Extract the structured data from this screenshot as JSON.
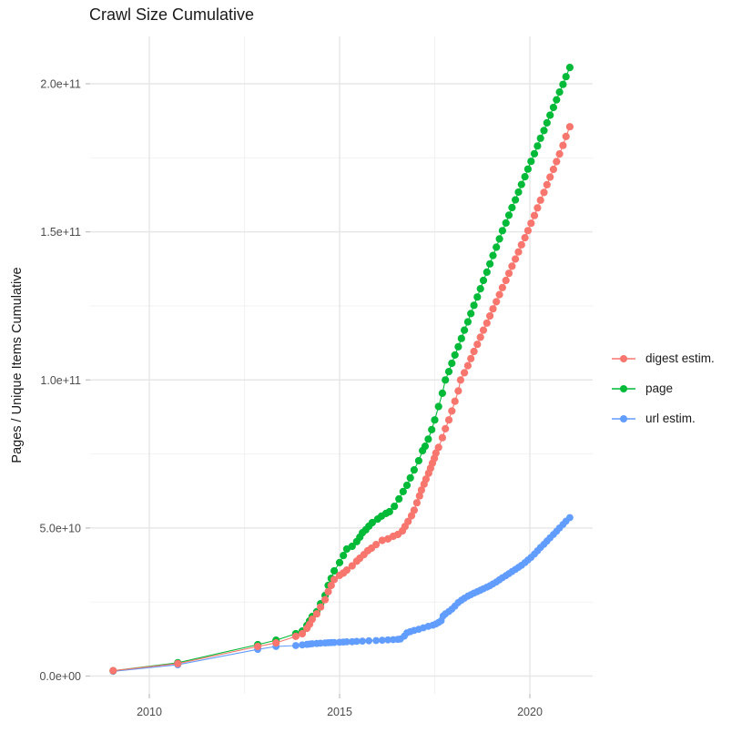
{
  "title": "Crawl Size Cumulative",
  "axes": {
    "y_title": "Pages / Unique Items Cumulative",
    "y_ticks": [
      {
        "label": "0.0e+00",
        "value": 0
      },
      {
        "label": "5.0e+10",
        "value": 50
      },
      {
        "label": "1.0e+11",
        "value": 100
      },
      {
        "label": "1.5e+11",
        "value": 150
      },
      {
        "label": "2.0e+11",
        "value": 200
      }
    ],
    "y_minor_values": [
      25,
      75,
      125,
      175
    ],
    "x_ticks": [
      {
        "label": "2010",
        "value": 2010
      },
      {
        "label": "2015",
        "value": 2015
      },
      {
        "label": "2020",
        "value": 2020
      }
    ],
    "x_minor_values": [
      2012.5,
      2017.5
    ]
  },
  "colors": {
    "digest": "#F8766D",
    "page": "#00BA38",
    "url": "#619CFF",
    "grid_major": "#E7E7E7",
    "grid_minor": "#F2F2F2",
    "tick_mark": "#BFBFBF",
    "tick_text": "#4D4D4D",
    "title_text": "#1A1A1A"
  },
  "chart_data": {
    "type": "scatter",
    "title": "Crawl Size Cumulative",
    "xlabel": "",
    "ylabel": "Pages / Unique Items Cumulative",
    "value_unit": "billions of pages / unique items (1 = 1e9); axis labels shown in e-notation",
    "x_range": [
      2008.4,
      2021.7
    ],
    "y_range_billions": [
      -9,
      216
    ],
    "grid": true,
    "legend_position": "right",
    "point_style": "filled circles connected by thin lines",
    "series": [
      {
        "name": "digest estim.",
        "color": "#F8766D",
        "point_radius": 4.1,
        "points": [
          [
            2009.05,
            1.8
          ],
          [
            2010.75,
            4.2
          ],
          [
            2012.85,
            10.0
          ],
          [
            2013.33,
            11.2
          ],
          [
            2013.85,
            13.4
          ],
          [
            2014.02,
            14.3
          ],
          [
            2014.14,
            16.1
          ],
          [
            2014.21,
            17.5
          ],
          [
            2014.28,
            19.2
          ],
          [
            2014.4,
            21.0
          ],
          [
            2014.5,
            23.3
          ],
          [
            2014.62,
            25.8
          ],
          [
            2014.7,
            28.5
          ],
          [
            2014.78,
            30.6
          ],
          [
            2014.86,
            32.6
          ],
          [
            2015.0,
            34.0
          ],
          [
            2015.1,
            34.8
          ],
          [
            2015.19,
            35.8
          ],
          [
            2015.33,
            37.2
          ],
          [
            2015.45,
            38.8
          ],
          [
            2015.53,
            39.8
          ],
          [
            2015.64,
            41.0
          ],
          [
            2015.74,
            42.3
          ],
          [
            2015.84,
            43.2
          ],
          [
            2015.96,
            44.4
          ],
          [
            2016.12,
            45.8
          ],
          [
            2016.27,
            46.3
          ],
          [
            2016.41,
            47.2
          ],
          [
            2016.53,
            47.8
          ],
          [
            2016.65,
            49.0
          ],
          [
            2016.72,
            50.5
          ],
          [
            2016.8,
            52.2
          ],
          [
            2016.89,
            54.1
          ],
          [
            2016.96,
            56.0
          ],
          [
            2017.03,
            58.5
          ],
          [
            2017.1,
            60.8
          ],
          [
            2017.15,
            62.8
          ],
          [
            2017.22,
            64.8
          ],
          [
            2017.27,
            66.5
          ],
          [
            2017.34,
            68.5
          ],
          [
            2017.39,
            70.2
          ],
          [
            2017.44,
            71.9
          ],
          [
            2017.49,
            73.5
          ],
          [
            2017.53,
            75.3
          ],
          [
            2017.6,
            77.2
          ],
          [
            2017.7,
            80.5
          ],
          [
            2017.78,
            83.5
          ],
          [
            2017.87,
            86.5
          ],
          [
            2017.95,
            89.5
          ],
          [
            2018.03,
            92.8
          ],
          [
            2018.12,
            96.3
          ],
          [
            2018.18,
            100.0
          ],
          [
            2018.28,
            102.4
          ],
          [
            2018.37,
            104.8
          ],
          [
            2018.45,
            107.2
          ],
          [
            2018.53,
            109.6
          ],
          [
            2018.62,
            112.0
          ],
          [
            2018.7,
            114.4
          ],
          [
            2018.78,
            116.8
          ],
          [
            2018.87,
            119.2
          ],
          [
            2018.95,
            121.6
          ],
          [
            2019.03,
            124.0
          ],
          [
            2019.12,
            126.4
          ],
          [
            2019.2,
            128.8
          ],
          [
            2019.28,
            131.2
          ],
          [
            2019.37,
            133.6
          ],
          [
            2019.45,
            136.0
          ],
          [
            2019.53,
            138.4
          ],
          [
            2019.62,
            140.8
          ],
          [
            2019.7,
            143.2
          ],
          [
            2019.78,
            145.6
          ],
          [
            2019.87,
            148.0
          ],
          [
            2019.95,
            150.4
          ],
          [
            2020.03,
            152.9
          ],
          [
            2020.12,
            155.5
          ],
          [
            2020.2,
            158.1
          ],
          [
            2020.28,
            160.7
          ],
          [
            2020.37,
            163.3
          ],
          [
            2020.45,
            165.9
          ],
          [
            2020.53,
            168.5
          ],
          [
            2020.62,
            171.1
          ],
          [
            2020.7,
            173.7
          ],
          [
            2020.78,
            176.3
          ],
          [
            2020.87,
            179.2
          ],
          [
            2020.95,
            182.2
          ],
          [
            2021.05,
            185.5
          ]
        ]
      },
      {
        "name": "page",
        "color": "#00BA38",
        "point_radius": 4.1,
        "points": [
          [
            2009.05,
            1.8
          ],
          [
            2010.75,
            4.5
          ],
          [
            2012.85,
            10.6
          ],
          [
            2013.33,
            12.1
          ],
          [
            2013.85,
            14.3
          ],
          [
            2014.02,
            15.2
          ],
          [
            2014.14,
            17.1
          ],
          [
            2014.21,
            18.6
          ],
          [
            2014.28,
            20.1
          ],
          [
            2014.4,
            21.7
          ],
          [
            2014.5,
            24.4
          ],
          [
            2014.62,
            27.2
          ],
          [
            2014.7,
            30.6
          ],
          [
            2014.78,
            33.0
          ],
          [
            2014.86,
            35.5
          ],
          [
            2015.0,
            38.3
          ],
          [
            2015.1,
            40.7
          ],
          [
            2015.19,
            42.9
          ],
          [
            2015.33,
            43.8
          ],
          [
            2015.45,
            45.4
          ],
          [
            2015.53,
            46.9
          ],
          [
            2015.6,
            48.4
          ],
          [
            2015.69,
            49.4
          ],
          [
            2015.77,
            50.6
          ],
          [
            2015.86,
            51.8
          ],
          [
            2016.0,
            53.0
          ],
          [
            2016.1,
            54.0
          ],
          [
            2016.22,
            54.9
          ],
          [
            2016.31,
            55.5
          ],
          [
            2016.44,
            57.3
          ],
          [
            2016.56,
            59.8
          ],
          [
            2016.67,
            62.3
          ],
          [
            2016.77,
            64.4
          ],
          [
            2016.86,
            66.9
          ],
          [
            2016.96,
            69.6
          ],
          [
            2017.08,
            72.7
          ],
          [
            2017.18,
            76.1
          ],
          [
            2017.25,
            77.6
          ],
          [
            2017.33,
            80.0
          ],
          [
            2017.42,
            83.2
          ],
          [
            2017.5,
            86.5
          ],
          [
            2017.6,
            91.0
          ],
          [
            2017.7,
            95.5
          ],
          [
            2017.78,
            100.0
          ],
          [
            2017.87,
            102.8
          ],
          [
            2017.95,
            105.6
          ],
          [
            2018.03,
            108.4
          ],
          [
            2018.12,
            111.2
          ],
          [
            2018.2,
            114.0
          ],
          [
            2018.28,
            116.8
          ],
          [
            2018.37,
            119.6
          ],
          [
            2018.45,
            122.4
          ],
          [
            2018.53,
            125.2
          ],
          [
            2018.62,
            128.0
          ],
          [
            2018.7,
            130.8
          ],
          [
            2018.78,
            133.6
          ],
          [
            2018.87,
            136.4
          ],
          [
            2018.95,
            139.2
          ],
          [
            2019.03,
            142.0
          ],
          [
            2019.12,
            144.8
          ],
          [
            2019.2,
            147.6
          ],
          [
            2019.28,
            150.4
          ],
          [
            2019.37,
            153.0
          ],
          [
            2019.45,
            155.6
          ],
          [
            2019.53,
            158.2
          ],
          [
            2019.62,
            160.8
          ],
          [
            2019.7,
            163.4
          ],
          [
            2019.78,
            166.0
          ],
          [
            2019.87,
            168.6
          ],
          [
            2019.95,
            171.2
          ],
          [
            2020.03,
            173.8
          ],
          [
            2020.12,
            176.4
          ],
          [
            2020.2,
            179.0
          ],
          [
            2020.28,
            181.6
          ],
          [
            2020.37,
            184.2
          ],
          [
            2020.45,
            186.8
          ],
          [
            2020.53,
            189.4
          ],
          [
            2020.62,
            192.0
          ],
          [
            2020.7,
            194.6
          ],
          [
            2020.78,
            197.2
          ],
          [
            2020.87,
            199.8
          ],
          [
            2020.95,
            202.4
          ],
          [
            2021.05,
            205.5
          ]
        ]
      },
      {
        "name": "url estim.",
        "color": "#619CFF",
        "point_radius": 3.9,
        "points": [
          [
            2009.05,
            1.6
          ],
          [
            2010.75,
            3.8
          ],
          [
            2012.85,
            9.0
          ],
          [
            2013.33,
            10.0
          ],
          [
            2013.85,
            10.3
          ],
          [
            2014.02,
            10.5
          ],
          [
            2014.14,
            10.7
          ],
          [
            2014.21,
            10.8
          ],
          [
            2014.28,
            10.9
          ],
          [
            2014.4,
            11.0
          ],
          [
            2014.5,
            11.1
          ],
          [
            2014.62,
            11.2
          ],
          [
            2014.7,
            11.25
          ],
          [
            2014.78,
            11.3
          ],
          [
            2014.86,
            11.35
          ],
          [
            2015.0,
            11.4
          ],
          [
            2015.1,
            11.5
          ],
          [
            2015.19,
            11.55
          ],
          [
            2015.33,
            11.6
          ],
          [
            2015.45,
            11.7
          ],
          [
            2015.6,
            11.8
          ],
          [
            2015.77,
            11.9
          ],
          [
            2015.96,
            12.0
          ],
          [
            2016.12,
            12.1
          ],
          [
            2016.27,
            12.2
          ],
          [
            2016.41,
            12.3
          ],
          [
            2016.53,
            12.4
          ],
          [
            2016.6,
            12.5
          ],
          [
            2016.7,
            13.5
          ],
          [
            2016.77,
            14.6
          ],
          [
            2016.86,
            15.0
          ],
          [
            2016.96,
            15.4
          ],
          [
            2017.08,
            15.8
          ],
          [
            2017.2,
            16.3
          ],
          [
            2017.33,
            16.8
          ],
          [
            2017.45,
            17.2
          ],
          [
            2017.53,
            17.6
          ],
          [
            2017.6,
            18.1
          ],
          [
            2017.67,
            18.7
          ],
          [
            2017.72,
            20.3
          ],
          [
            2017.78,
            21.0
          ],
          [
            2017.87,
            21.8
          ],
          [
            2017.95,
            22.6
          ],
          [
            2018.03,
            23.6
          ],
          [
            2018.12,
            24.8
          ],
          [
            2018.2,
            25.6
          ],
          [
            2018.28,
            26.3
          ],
          [
            2018.37,
            27.0
          ],
          [
            2018.45,
            27.5
          ],
          [
            2018.53,
            28.0
          ],
          [
            2018.62,
            28.5
          ],
          [
            2018.7,
            29.0
          ],
          [
            2018.78,
            29.5
          ],
          [
            2018.87,
            30.0
          ],
          [
            2018.95,
            30.5
          ],
          [
            2019.03,
            31.1
          ],
          [
            2019.12,
            31.8
          ],
          [
            2019.2,
            32.5
          ],
          [
            2019.28,
            33.2
          ],
          [
            2019.37,
            33.9
          ],
          [
            2019.45,
            34.6
          ],
          [
            2019.53,
            35.3
          ],
          [
            2019.62,
            36.0
          ],
          [
            2019.7,
            36.7
          ],
          [
            2019.78,
            37.4
          ],
          [
            2019.87,
            38.3
          ],
          [
            2019.95,
            39.2
          ],
          [
            2020.03,
            40.1
          ],
          [
            2020.12,
            41.2
          ],
          [
            2020.2,
            42.3
          ],
          [
            2020.28,
            43.4
          ],
          [
            2020.37,
            44.5
          ],
          [
            2020.45,
            45.6
          ],
          [
            2020.53,
            46.7
          ],
          [
            2020.62,
            47.8
          ],
          [
            2020.7,
            48.9
          ],
          [
            2020.78,
            50.0
          ],
          [
            2020.87,
            51.2
          ],
          [
            2020.95,
            52.3
          ],
          [
            2021.05,
            53.5
          ]
        ]
      }
    ]
  }
}
